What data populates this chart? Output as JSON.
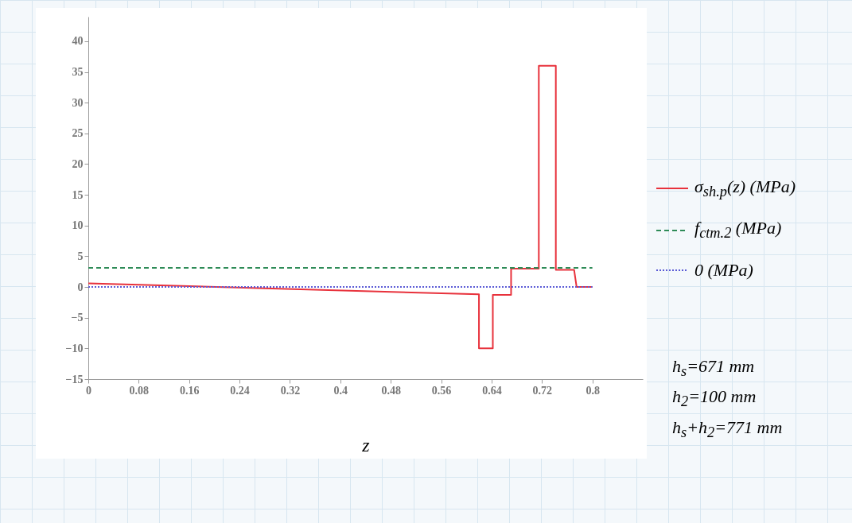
{
  "chart_data": {
    "type": "line",
    "xlabel": "z",
    "legend": "right",
    "grid": false,
    "marker": "none",
    "xlim": [
      0,
      0.88
    ],
    "ylim": [
      -15,
      44
    ],
    "xticks": [
      0,
      0.08,
      0.16,
      0.24,
      0.32,
      0.4,
      0.48,
      0.56,
      0.64,
      0.72,
      0.8
    ],
    "yticks": [
      -15,
      -10,
      -5,
      0,
      5,
      10,
      15,
      20,
      25,
      30,
      35,
      40
    ],
    "series": [
      {
        "name": "σ$_{sh.p}$(z) (MPa)",
        "color": "#e8323c",
        "line_style": "solid",
        "x": [
          0,
          0.62,
          0.62,
          0.642,
          0.642,
          0.671,
          0.671,
          0.715,
          0.715,
          0.742,
          0.742,
          0.771,
          0.775,
          0.8
        ],
        "values": [
          0.6,
          -1.2,
          -10,
          -10,
          -1.3,
          -1.3,
          3.0,
          3.0,
          36,
          36,
          2.8,
          2.8,
          0,
          0
        ]
      },
      {
        "name": "f$_{ctm.2}$ (MPa)",
        "color": "#2e8b57",
        "line_style": "dashed",
        "x": [
          0,
          0.8
        ],
        "values": [
          3.1,
          3.1
        ]
      },
      {
        "name": "0 (MPa)",
        "color": "#5b5bd6",
        "line_style": "dotted",
        "x": [
          0,
          0.8
        ],
        "values": [
          0,
          0
        ]
      }
    ],
    "annotations": [
      "h$_{s}$=671 mm",
      "h$_{2}$=100 mm",
      "h$_{s}$+h$_{2}$=771 mm"
    ]
  }
}
